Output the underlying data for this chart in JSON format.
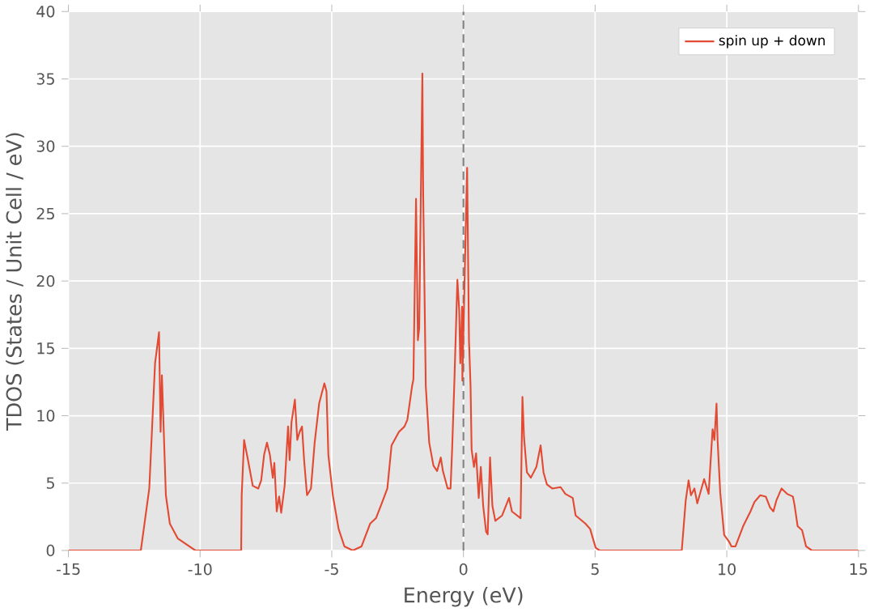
{
  "chart_data": {
    "type": "line",
    "xlabel": "Energy (eV)",
    "ylabel": "TDOS (States / Unit Cell / eV)",
    "xlim": [
      -15,
      15
    ],
    "ylim": [
      0,
      40
    ],
    "xticks": [
      -15,
      -10,
      -5,
      0,
      5,
      10,
      15
    ],
    "yticks": [
      0,
      5,
      10,
      15,
      20,
      25,
      30,
      35,
      40
    ],
    "grid": true,
    "legend": "top right",
    "marker": "none",
    "line_style": "solid",
    "ref_lines": [
      {
        "axis": "x",
        "value": 0,
        "color": "#808080",
        "line_style": "dashed"
      }
    ],
    "series": [
      {
        "name": "spin up + down",
        "color": "#e24a33",
        "x": [
          -15,
          -12.25,
          -11.93,
          -11.71,
          -11.56,
          -11.5,
          -11.45,
          -11.3,
          -11.15,
          -10.85,
          -10.18,
          -8.44,
          -8.42,
          -8.33,
          -8.18,
          -8.0,
          -7.79,
          -7.68,
          -7.57,
          -7.46,
          -7.35,
          -7.24,
          -7.18,
          -7.09,
          -7.0,
          -6.92,
          -6.79,
          -6.66,
          -6.6,
          -6.53,
          -6.4,
          -6.31,
          -6.22,
          -6.13,
          -6.05,
          -5.94,
          -5.79,
          -5.65,
          -5.48,
          -5.39,
          -5.28,
          -5.2,
          -5.13,
          -4.96,
          -4.74,
          -4.52,
          -4.2,
          -3.87,
          -3.54,
          -3.32,
          -3.1,
          -2.89,
          -2.73,
          -2.45,
          -2.24,
          -2.13,
          -1.95,
          -1.9,
          -1.8,
          -1.73,
          -1.68,
          -1.56,
          -1.53,
          -1.43,
          -1.3,
          -1.14,
          -1.0,
          -0.86,
          -0.78,
          -0.6,
          -0.49,
          -0.43,
          -0.34,
          -0.23,
          -0.16,
          -0.12,
          -0.05,
          -0.04,
          0.05,
          0.14,
          0.21,
          0.27,
          0.31,
          0.4,
          0.48,
          0.58,
          0.66,
          0.75,
          0.86,
          0.92,
          1.01,
          1.1,
          1.21,
          1.47,
          1.73,
          1.84,
          2.17,
          2.24,
          2.3,
          2.41,
          2.56,
          2.77,
          2.93,
          3.04,
          3.17,
          3.37,
          3.69,
          3.87,
          4.15,
          4.26,
          4.63,
          4.81,
          5.02,
          5.17,
          8.29,
          8.44,
          8.55,
          8.64,
          8.77,
          8.88,
          9.14,
          9.31,
          9.46,
          9.53,
          9.61,
          9.65,
          9.75,
          9.9,
          10.07,
          10.18,
          10.33,
          10.62,
          10.9,
          11.05,
          11.27,
          11.48,
          11.64,
          11.77,
          11.88,
          12.08,
          12.29,
          12.51,
          12.57,
          12.69,
          12.86,
          13.01,
          13.23,
          15
        ],
        "values": [
          0,
          0,
          4.6,
          13.9,
          16.2,
          8.8,
          13.0,
          4.1,
          2.0,
          0.9,
          0,
          0,
          4.1,
          8.2,
          6.7,
          4.8,
          4.6,
          5.2,
          7.1,
          8.0,
          7.1,
          5.4,
          6.5,
          2.9,
          4.0,
          2.8,
          4.8,
          9.2,
          6.7,
          9.5,
          11.2,
          8.2,
          8.8,
          9.2,
          6.7,
          4.1,
          4.6,
          8.0,
          10.9,
          11.6,
          12.4,
          11.8,
          7.1,
          4.1,
          1.6,
          0.3,
          0,
          0.3,
          2.0,
          2.4,
          3.5,
          4.6,
          7.8,
          8.8,
          9.2,
          9.7,
          12.2,
          12.7,
          26.1,
          15.6,
          16.5,
          35.4,
          26.7,
          12.2,
          8.0,
          6.3,
          5.9,
          6.9,
          5.9,
          4.6,
          4.6,
          7.5,
          12.8,
          20.1,
          17.8,
          13.9,
          18.1,
          12.6,
          20.7,
          28.4,
          15.6,
          12.2,
          7.5,
          6.2,
          7.2,
          3.9,
          6.2,
          3.3,
          1.4,
          1.2,
          6.9,
          3.3,
          2.2,
          2.6,
          3.9,
          2.9,
          2.4,
          11.4,
          8.4,
          5.8,
          5.4,
          6.2,
          7.8,
          5.8,
          4.9,
          4.6,
          4.7,
          4.2,
          3.9,
          2.6,
          2.0,
          1.6,
          0.2,
          0,
          0,
          3.7,
          5.2,
          4.1,
          4.6,
          3.5,
          5.3,
          4.2,
          9.0,
          8.2,
          10.9,
          8.2,
          4.3,
          1.15,
          0.7,
          0.3,
          0.3,
          1.8,
          2.9,
          3.6,
          4.1,
          4.0,
          3.2,
          2.9,
          3.7,
          4.6,
          4.2,
          4.0,
          3.4,
          1.8,
          1.5,
          0.3,
          0,
          0
        ]
      }
    ]
  }
}
